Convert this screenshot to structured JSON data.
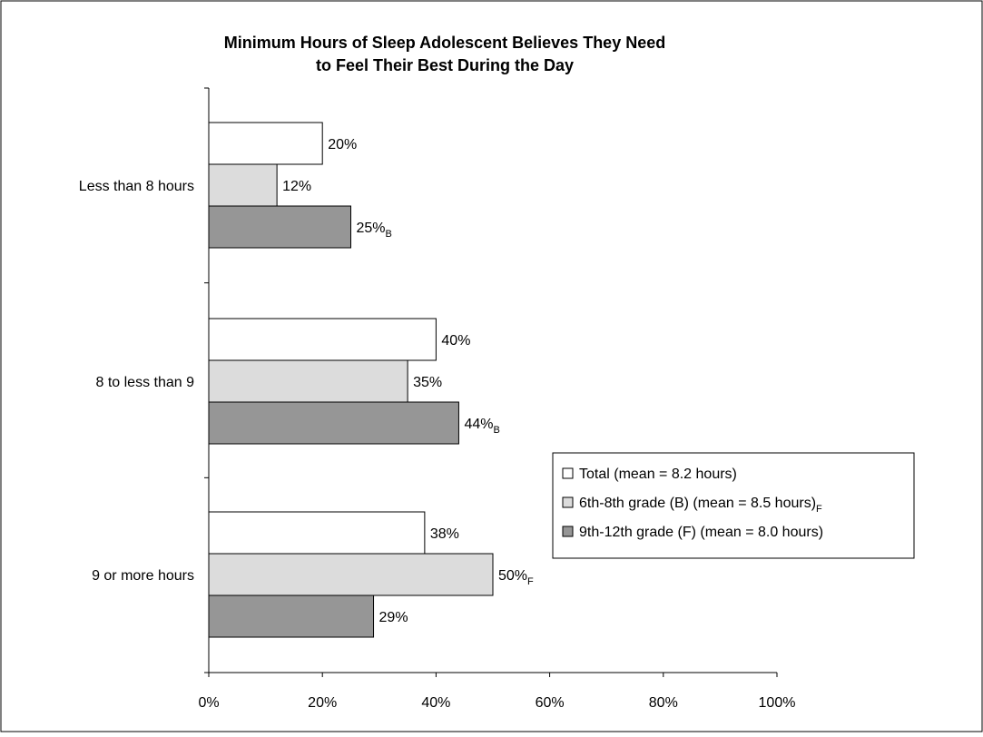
{
  "chart_data": {
    "type": "bar",
    "orientation": "horizontal",
    "title_lines": [
      "Minimum Hours of Sleep Adolescent Believes They Need",
      "to Feel Their Best During the Day"
    ],
    "xlabel": "",
    "ylabel": "",
    "xlim": [
      0,
      100
    ],
    "x_ticks": [
      "0%",
      "20%",
      "40%",
      "60%",
      "80%",
      "100%"
    ],
    "grid": false,
    "legend_placement": "bottom-right",
    "categories": [
      "Less than 8 hours",
      "8 to less than 9",
      "9 or more hours"
    ],
    "series": [
      {
        "name": "Total  (mean = 8.2 hours)",
        "legend_suffix": "",
        "color": "#ffffff",
        "values": [
          20,
          40,
          38
        ],
        "labels": [
          "20%",
          "40%",
          "38%"
        ],
        "subscripts": [
          "",
          "",
          ""
        ]
      },
      {
        "name": "6th-8th grade (B)  (mean = 8.5 hours)",
        "legend_suffix": "F",
        "color": "#dcdcdc",
        "values": [
          12,
          35,
          50
        ],
        "labels": [
          "12%",
          "35%",
          "50%"
        ],
        "subscripts": [
          "",
          "",
          "F"
        ]
      },
      {
        "name": "9th-12th grade (F)  (mean = 8.0 hours)",
        "legend_suffix": "",
        "color": "#969696",
        "values": [
          25,
          44,
          29
        ],
        "labels": [
          "25%",
          "44%",
          "29%"
        ],
        "subscripts": [
          "B",
          "B",
          ""
        ]
      }
    ]
  }
}
